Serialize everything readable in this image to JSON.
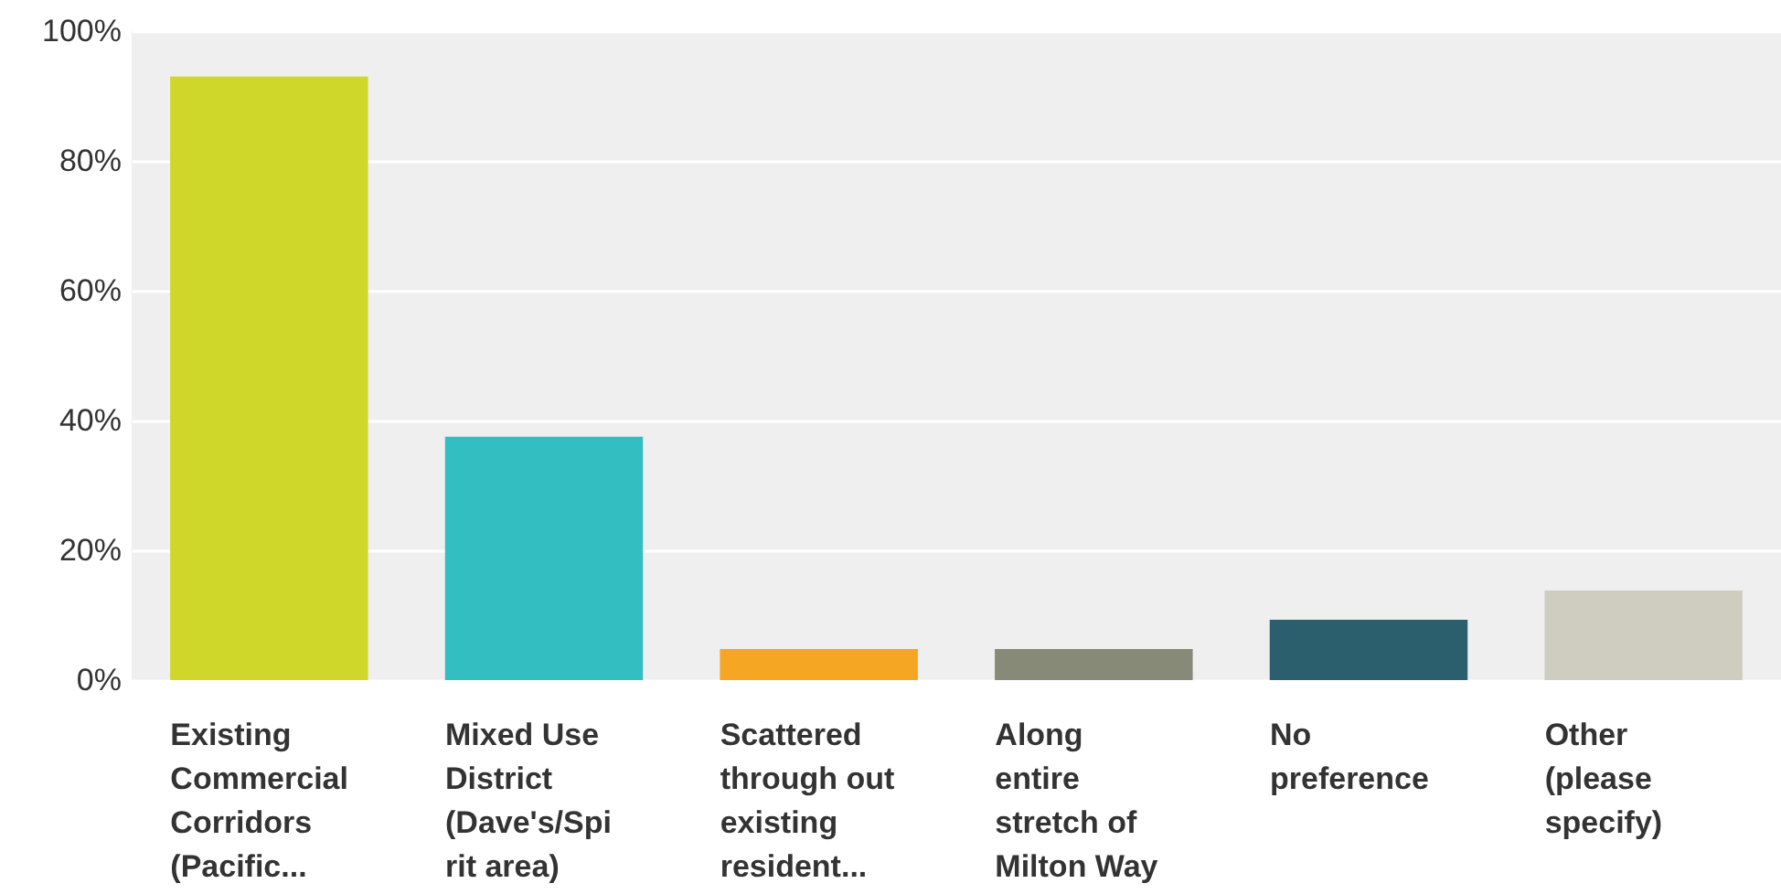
{
  "chart_data": {
    "type": "bar",
    "categories": [
      "Existing Commercial Corridors (Pacific...",
      "Mixed Use District (Dave's/Spirit area)",
      "Scattered through out existing resident...",
      "Along entire stretch of Milton Way",
      "No preference",
      "Other (please specify)"
    ],
    "values": [
      93,
      37.5,
      4.8,
      4.8,
      9.3,
      13.8
    ],
    "colors": [
      "#d0d72b",
      "#33bfc1",
      "#f5a623",
      "#878a76",
      "#2b5f6d",
      "#cfcdbf"
    ],
    "ylim": [
      0,
      100
    ],
    "yticks": [
      {
        "value": 0,
        "label": "0%"
      },
      {
        "value": 20,
        "label": "20%"
      },
      {
        "value": 40,
        "label": "40%"
      },
      {
        "value": 60,
        "label": "60%"
      },
      {
        "value": 80,
        "label": "80%"
      },
      {
        "value": 100,
        "label": "100%"
      }
    ],
    "grid": true
  }
}
